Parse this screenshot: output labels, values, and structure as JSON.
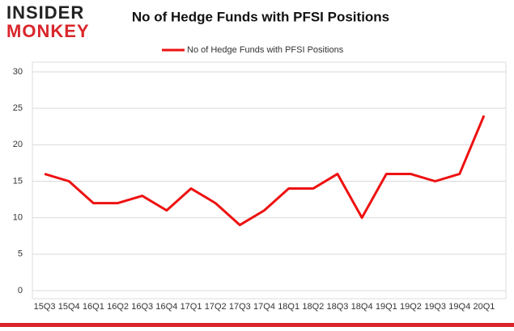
{
  "logo": {
    "top": "INSIDER",
    "bottom": "MONKEY"
  },
  "chart_data": {
    "type": "line",
    "title": "No of Hedge Funds with PFSI Positions",
    "categories": [
      "15Q3",
      "15Q4",
      "16Q1",
      "16Q2",
      "16Q3",
      "16Q4",
      "17Q1",
      "17Q2",
      "17Q3",
      "17Q4",
      "18Q1",
      "18Q2",
      "18Q3",
      "18Q4",
      "19Q1",
      "19Q2",
      "19Q3",
      "19Q4",
      "20Q1"
    ],
    "series": [
      {
        "name": "No of Hedge Funds with PFSI Positions",
        "color": "#ee1111",
        "values": [
          16,
          15,
          12,
          12,
          13,
          11,
          14,
          12,
          9,
          11,
          14,
          14,
          16,
          10,
          16,
          16,
          15,
          16,
          24
        ]
      }
    ],
    "ylim": [
      0,
      30
    ],
    "yticks": [
      0,
      5,
      10,
      15,
      20,
      25,
      30
    ],
    "grid": true,
    "legend": "top"
  }
}
